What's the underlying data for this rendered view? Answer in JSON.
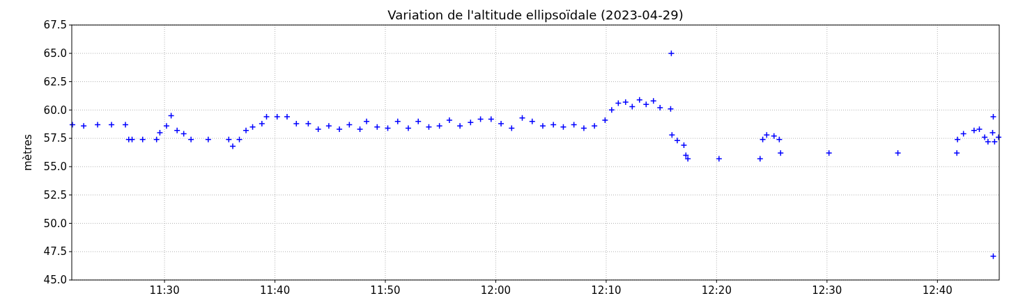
{
  "chart_data": {
    "type": "scatter",
    "title": "Variation de l'altitude ellipsoïdale (2023-04-29)",
    "ylabel": "mètres",
    "marker": "cross",
    "grid": true,
    "xlim": [
      11.36,
      12.76
    ],
    "ylim": [
      45,
      67.5
    ],
    "xticks": [
      {
        "value": 11.5,
        "label": "11:30"
      },
      {
        "value": 11.6667,
        "label": "11:40"
      },
      {
        "value": 11.8333,
        "label": "11:50"
      },
      {
        "value": 12,
        "label": "12:00"
      },
      {
        "value": 12.1667,
        "label": "12:10"
      },
      {
        "value": 12.3333,
        "label": "12:20"
      },
      {
        "value": 12.5,
        "label": "12:30"
      },
      {
        "value": 12.6667,
        "label": "12:40"
      }
    ],
    "yticks": [
      {
        "value": 45,
        "label": "45.0"
      },
      {
        "value": 47.5,
        "label": "47.5"
      },
      {
        "value": 50,
        "label": "50.0"
      },
      {
        "value": 52.5,
        "label": "52.5"
      },
      {
        "value": 55,
        "label": "55.0"
      },
      {
        "value": 57.5,
        "label": "57.5"
      },
      {
        "value": 60,
        "label": "60.0"
      },
      {
        "value": 62.5,
        "label": "62.5"
      },
      {
        "value": 65,
        "label": "65.0"
      },
      {
        "value": 67.5,
        "label": "67.5"
      }
    ],
    "series": [
      {
        "color": "#0000ff",
        "x": [
          11.361,
          11.378,
          11.399,
          11.42,
          11.441,
          11.446,
          11.451,
          11.467,
          11.488,
          11.493,
          11.503,
          11.51,
          11.519,
          11.529,
          11.54,
          11.566,
          11.597,
          11.603,
          11.613,
          11.623,
          11.633,
          11.647,
          11.654,
          11.67,
          11.685,
          11.699,
          11.717,
          11.732,
          11.748,
          11.764,
          11.779,
          11.795,
          11.805,
          11.821,
          11.837,
          11.852,
          11.868,
          11.883,
          11.899,
          11.915,
          11.93,
          11.946,
          11.962,
          11.977,
          11.993,
          12.008,
          12.024,
          12.04,
          12.055,
          12.071,
          12.087,
          12.102,
          12.118,
          12.133,
          12.149,
          12.165,
          12.175,
          12.185,
          12.196,
          12.206,
          12.217,
          12.227,
          12.238,
          12.248,
          12.264,
          12.265,
          12.266,
          12.274,
          12.284,
          12.287,
          12.29,
          12.337,
          12.399,
          12.403,
          12.409,
          12.42,
          12.428,
          12.43,
          12.503,
          12.607,
          12.696,
          12.697,
          12.706,
          12.722,
          12.73,
          12.738,
          12.743,
          12.75,
          12.751,
          12.751,
          12.753,
          12.759
        ],
        "values": [
          58.7,
          58.6,
          58.7,
          58.7,
          58.7,
          57.4,
          57.4,
          57.4,
          57.4,
          58.0,
          58.6,
          59.5,
          58.2,
          57.9,
          57.4,
          57.4,
          57.4,
          56.8,
          57.4,
          58.2,
          58.5,
          58.8,
          59.4,
          59.4,
          59.4,
          58.8,
          58.8,
          58.3,
          58.6,
          58.3,
          58.7,
          58.3,
          59.0,
          58.5,
          58.4,
          59.0,
          58.4,
          59.0,
          58.5,
          58.6,
          59.1,
          58.6,
          58.9,
          59.2,
          59.2,
          58.8,
          58.4,
          59.3,
          59.0,
          58.6,
          58.7,
          58.5,
          58.7,
          58.4,
          58.6,
          59.1,
          60.0,
          60.6,
          60.7,
          60.3,
          60.9,
          60.5,
          60.8,
          60.2,
          60.1,
          65.0,
          57.8,
          57.3,
          56.9,
          56.0,
          55.7,
          55.7,
          55.7,
          57.4,
          57.8,
          57.7,
          57.4,
          56.2,
          56.2,
          56.2,
          56.2,
          57.4,
          57.9,
          58.2,
          58.3,
          57.6,
          57.2,
          58.0,
          59.4,
          47.1,
          57.2,
          57.6
        ]
      }
    ]
  }
}
